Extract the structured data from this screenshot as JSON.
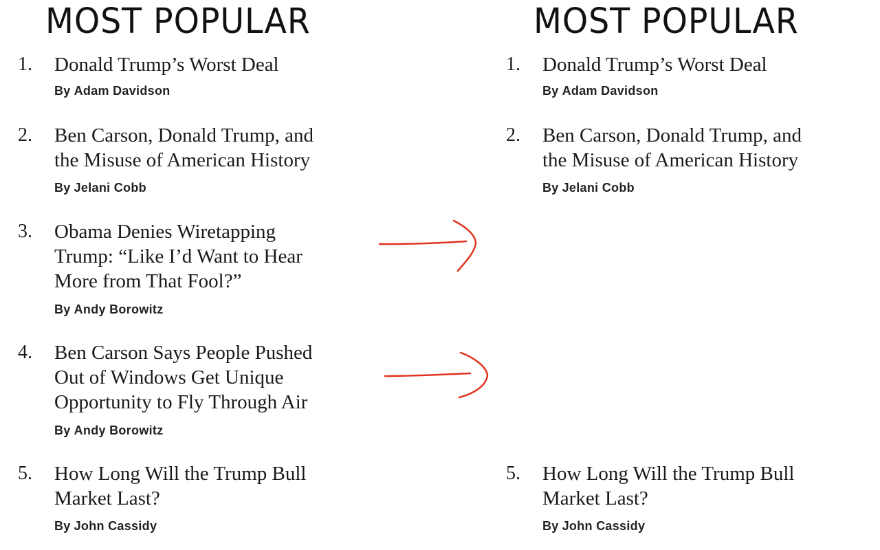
{
  "heading": "MOST POPULAR",
  "by_prefix": "By",
  "left_list": [
    {
      "number": "1.",
      "title_lines": [
        "Donald Trump’s Worst Deal"
      ],
      "author": "Adam Davidson"
    },
    {
      "number": "2.",
      "title_lines": [
        "Ben Carson, Donald Trump, and",
        "the Misuse of American History"
      ],
      "author": "Jelani Cobb"
    },
    {
      "number": "3.",
      "title_lines": [
        "Obama Denies Wiretapping",
        "Trump: “Like I’d Want to Hear",
        "More from That Fool?”"
      ],
      "author": "Andy Borowitz"
    },
    {
      "number": "4.",
      "title_lines": [
        "Ben Carson Says People Pushed",
        "Out of Windows Get Unique",
        "Opportunity to Fly Through Air"
      ],
      "author": "Andy Borowitz"
    },
    {
      "number": "5.",
      "title_lines": [
        "How Long Will the Trump Bull",
        "Market Last?"
      ],
      "author": "John Cassidy"
    }
  ],
  "right_list": [
    {
      "number": "1.",
      "title_lines": [
        "Donald Trump’s Worst Deal"
      ],
      "author": "Adam Davidson"
    },
    {
      "number": "2.",
      "title_lines": [
        "Ben Carson, Donald Trump, and",
        "the Misuse of American History"
      ],
      "author": "Jelani Cobb"
    },
    {
      "number": "5.",
      "title_lines": [
        "How Long Will the Trump Bull",
        "Market Last?"
      ],
      "author": "John Cassidy"
    }
  ],
  "annotation_color": "#e0321f"
}
